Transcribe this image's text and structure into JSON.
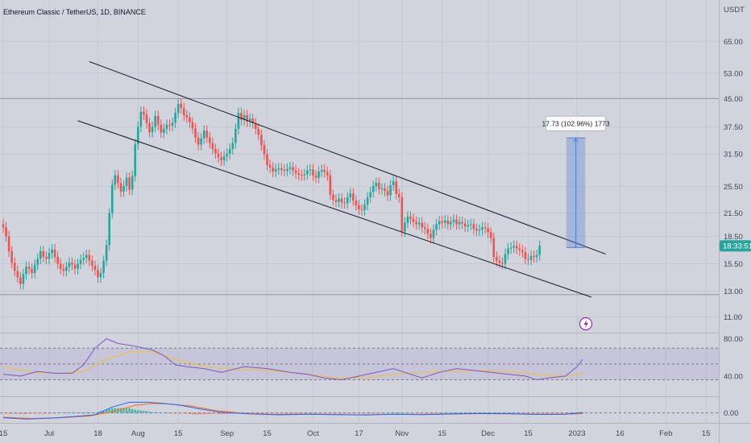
{
  "header": {
    "title": "Ethereum Classic / TetherUS, 1D, BINANCE"
  },
  "axis": {
    "currency": "USDT"
  },
  "last_price": {
    "time": "18:33:51",
    "color": "#26a69a"
  },
  "measure": {
    "label": "17.73 (102.96%) 1773",
    "from": 17.2,
    "to": 34.9
  },
  "colors": {
    "up": "#26a69a",
    "down": "#ef5350",
    "rsi": "#7e57c2",
    "rsi_ma": "#f2c12e",
    "macd": "#2962ff",
    "signal": "#ff6d00",
    "measure": "#4f7fd8"
  },
  "icons": {
    "alert": "lightning-icon"
  },
  "chart_data": [
    {
      "type": "candlestick",
      "title": "Ethereum Classic / TetherUS, 1D, BINANCE",
      "y_scale": "log",
      "ylim": [
        10.2,
        75
      ],
      "yticks": [
        11.0,
        13.0,
        15.5,
        18.5,
        21.5,
        25.5,
        31.5,
        37.5,
        45.0,
        53.0,
        65.0
      ],
      "ytick_labels": [
        "11.00",
        "13.00",
        "15.50",
        "18.50",
        "21.50",
        "25.50",
        "31.50",
        "37.50",
        "45.00",
        "53.00",
        "65.00"
      ],
      "x_ticks": [
        {
          "label": "15",
          "day": 0
        },
        {
          "label": "Jul",
          "day": 16
        },
        {
          "label": "18",
          "day": 33
        },
        {
          "label": "Aug",
          "day": 47
        },
        {
          "label": "15",
          "day": 61
        },
        {
          "label": "Sep",
          "day": 78
        },
        {
          "label": "15",
          "day": 92
        },
        {
          "label": "Oct",
          "day": 108
        },
        {
          "label": "17",
          "day": 124
        },
        {
          "label": "Nov",
          "day": 139
        },
        {
          "label": "15",
          "day": 153
        },
        {
          "label": "Dec",
          "day": 169
        },
        {
          "label": "15",
          "day": 183
        },
        {
          "label": "2023",
          "day": 200
        },
        {
          "label": "16",
          "day": 215
        },
        {
          "label": "Feb",
          "day": 231
        },
        {
          "label": "15",
          "day": 245
        }
      ],
      "x_last_day": 202,
      "closes": [
        19.6,
        18.5,
        16.8,
        15.6,
        14.8,
        14.2,
        13.6,
        14.5,
        15.2,
        15.0,
        14.6,
        15.4,
        16.0,
        16.8,
        16.2,
        16.0,
        16.6,
        17.0,
        16.2,
        15.5,
        15.0,
        14.8,
        15.2,
        15.6,
        15.4,
        15.0,
        15.5,
        15.9,
        16.1,
        16.4,
        15.8,
        15.3,
        14.9,
        14.2,
        14.6,
        15.8,
        17.5,
        21.5,
        25.8,
        27.4,
        26.1,
        24.7,
        25.6,
        27.0,
        25.0,
        27.3,
        33.5,
        37.5,
        41.3,
        40.6,
        38.4,
        36.2,
        37.5,
        40.2,
        38.0,
        36.1,
        37.0,
        38.0,
        37.8,
        38.5,
        41.0,
        43.5,
        42.3,
        40.4,
        39.8,
        38.6,
        37.1,
        35.0,
        33.4,
        34.8,
        36.6,
        35.0,
        33.8,
        32.5,
        31.6,
        30.8,
        30.2,
        31.0,
        31.5,
        32.5,
        33.8,
        37.0,
        41.0,
        39.2,
        40.4,
        38.8,
        39.5,
        38.4,
        37.0,
        35.6,
        33.3,
        31.4,
        29.3,
        28.8,
        28.1,
        28.5,
        28.7,
        28.4,
        28.2,
        28.6,
        28.9,
        28.3,
        27.8,
        27.5,
        27.4,
        27.6,
        28.3,
        28.5,
        27.4,
        27.0,
        28.1,
        28.4,
        28.0,
        27.4,
        24.2,
        23.4,
        23.1,
        23.6,
        23.0,
        22.9,
        23.8,
        24.4,
        23.3,
        22.6,
        22.0,
        21.9,
        22.7,
        23.8,
        24.6,
        25.6,
        26.1,
        25.1,
        25.2,
        24.8,
        24.1,
        25.7,
        26.4,
        24.3,
        23.8,
        19.1,
        20.2,
        21.0,
        20.7,
        20.3,
        20.0,
        20.2,
        19.6,
        19.4,
        18.8,
        18.3,
        19.3,
        20.0,
        20.4,
        20.2,
        20.5,
        20.0,
        20.3,
        20.6,
        20.0,
        20.3,
        20.1,
        19.7,
        19.9,
        20.0,
        19.4,
        19.2,
        19.3,
        19.6,
        19.5,
        19.0,
        18.3,
        16.2,
        15.8,
        15.6,
        15.5,
        16.5,
        17.1,
        17.2,
        17.4,
        17.1,
        16.9,
        16.7,
        16.0,
        15.9,
        16.3,
        16.2,
        16.4,
        17.4
      ],
      "channel": {
        "upper": [
          {
            "day": 30,
            "price": 57.1
          },
          {
            "day": 210,
            "price": 16.5
          }
        ],
        "lower": [
          {
            "day": 26,
            "price": 39.0
          },
          {
            "day": 205,
            "price": 12.5
          }
        ]
      },
      "horizontal_lines": [
        {
          "price": 45.0
        },
        {
          "price": 12.7
        }
      ]
    },
    {
      "type": "line",
      "title": "",
      "yticks": [
        40,
        80
      ],
      "ytick_labels": [
        "40.00",
        "80.00"
      ],
      "ylim": [
        20,
        84
      ],
      "band": [
        36,
        70
      ],
      "midline": 53,
      "series": [
        {
          "key": "rsi",
          "points": [
            [
              0,
              42
            ],
            [
              6,
              40
            ],
            [
              12,
              45
            ],
            [
              18,
              43
            ],
            [
              24,
              43
            ],
            [
              28,
              52
            ],
            [
              32,
              70
            ],
            [
              36,
              80
            ],
            [
              40,
              75
            ],
            [
              46,
              72
            ],
            [
              52,
              68
            ],
            [
              56,
              62
            ],
            [
              60,
              52
            ],
            [
              64,
              50
            ],
            [
              70,
              48
            ],
            [
              76,
              44
            ],
            [
              84,
              50
            ],
            [
              92,
              48
            ],
            [
              100,
              44
            ],
            [
              106,
              42
            ],
            [
              112,
              38
            ],
            [
              118,
              36
            ],
            [
              124,
              40
            ],
            [
              130,
              44
            ],
            [
              136,
              48
            ],
            [
              140,
              44
            ],
            [
              146,
              38
            ],
            [
              152,
              44
            ],
            [
              158,
              48
            ],
            [
              164,
              46
            ],
            [
              170,
              44
            ],
            [
              176,
              42
            ],
            [
              182,
              40
            ],
            [
              186,
              36
            ],
            [
              190,
              38
            ],
            [
              196,
              40
            ],
            [
              200,
              50
            ],
            [
              202,
              58
            ]
          ]
        },
        {
          "key": "rsi_ma",
          "points": [
            [
              0,
              50
            ],
            [
              10,
              44
            ],
            [
              20,
              43
            ],
            [
              28,
              45
            ],
            [
              36,
              58
            ],
            [
              44,
              66
            ],
            [
              52,
              66
            ],
            [
              60,
              58
            ],
            [
              68,
              52
            ],
            [
              76,
              48
            ],
            [
              86,
              47
            ],
            [
              96,
              45
            ],
            [
              106,
              42
            ],
            [
              116,
              38
            ],
            [
              126,
              38
            ],
            [
              136,
              42
            ],
            [
              146,
              44
            ],
            [
              156,
              45
            ],
            [
              166,
              46
            ],
            [
              176,
              45
            ],
            [
              186,
              42
            ],
            [
              196,
              40
            ],
            [
              202,
              43
            ]
          ]
        }
      ]
    },
    {
      "type": "line",
      "title": "",
      "yticks": [
        0
      ],
      "ytick_labels": [
        "0.00"
      ],
      "ylim": [
        -3.5,
        6
      ],
      "series": [
        {
          "key": "macd",
          "points": [
            [
              0,
              -2
            ],
            [
              8,
              -2.6
            ],
            [
              16,
              -2.2
            ],
            [
              24,
              -1.6
            ],
            [
              32,
              -0.8
            ],
            [
              38,
              2.5
            ],
            [
              44,
              4.5
            ],
            [
              50,
              4.5
            ],
            [
              56,
              4.0
            ],
            [
              62,
              3.2
            ],
            [
              68,
              1.8
            ],
            [
              76,
              0.3
            ],
            [
              86,
              -0.4
            ],
            [
              96,
              -0.8
            ],
            [
              106,
              -0.5
            ],
            [
              116,
              -0.7
            ],
            [
              126,
              -0.9
            ],
            [
              136,
              -0.5
            ],
            [
              146,
              -0.7
            ],
            [
              156,
              -0.4
            ],
            [
              166,
              -0.2
            ],
            [
              176,
              -0.3
            ],
            [
              186,
              -0.6
            ],
            [
              196,
              -0.5
            ],
            [
              202,
              0.1
            ]
          ]
        },
        {
          "key": "signal",
          "points": [
            [
              0,
              -1.8
            ],
            [
              10,
              -2.3
            ],
            [
              20,
              -2.0
            ],
            [
              30,
              -1.3
            ],
            [
              38,
              0.5
            ],
            [
              46,
              3.2
            ],
            [
              52,
              4.0
            ],
            [
              58,
              3.8
            ],
            [
              66,
              2.8
            ],
            [
              74,
              1.0
            ],
            [
              84,
              -0.2
            ],
            [
              94,
              -0.6
            ],
            [
              104,
              -0.5
            ],
            [
              114,
              -0.6
            ],
            [
              124,
              -0.8
            ],
            [
              134,
              -0.6
            ],
            [
              144,
              -0.6
            ],
            [
              154,
              -0.5
            ],
            [
              164,
              -0.3
            ],
            [
              174,
              -0.3
            ],
            [
              184,
              -0.5
            ],
            [
              194,
              -0.5
            ],
            [
              202,
              -0.3
            ]
          ]
        }
      ]
    }
  ]
}
